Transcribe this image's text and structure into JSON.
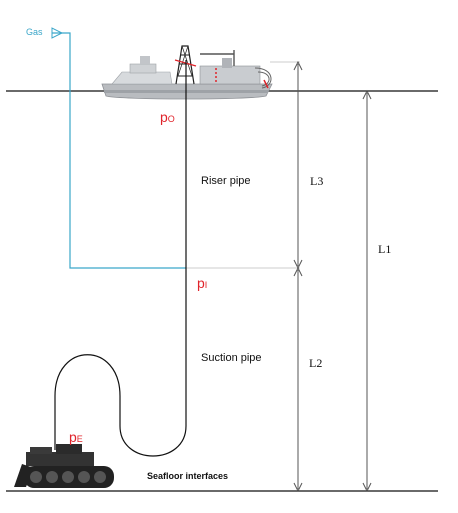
{
  "labels": {
    "gas": "Gas",
    "p0_main": "p",
    "p0_sub": "O",
    "pi_main": "p",
    "pi_sub": "I",
    "pe_main": "p",
    "pe_sub": "E",
    "riser_pipe": "Riser pipe",
    "suction_pipe": "Suction pipe",
    "seafloor": "Seafloor interfaces",
    "l1": "L1",
    "l2": "L2",
    "l3": "L3"
  },
  "colors": {
    "gas_line": "#3aa6c9",
    "pressure_label": "#e0242b",
    "pipe": "#111111",
    "dimension": "#555555",
    "ship_hull": "#b9bcc0",
    "ship_deck": "#d7dadd"
  }
}
